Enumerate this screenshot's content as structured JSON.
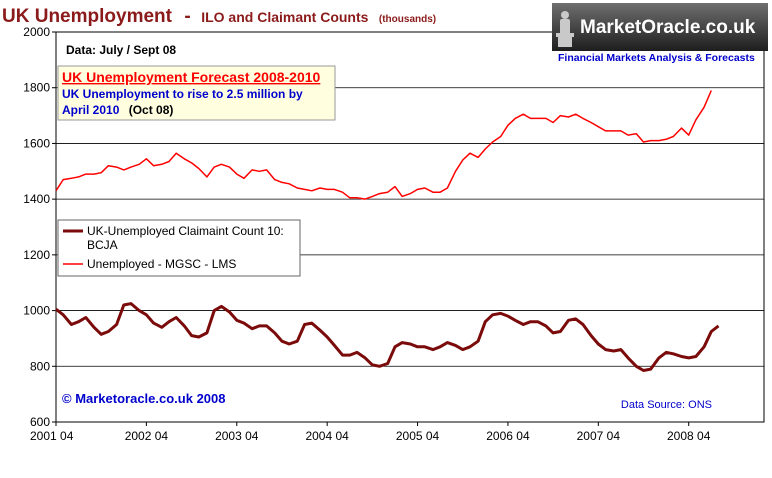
{
  "header": {
    "title_main": "UK Unemployment",
    "title_dash": "-",
    "title_sub": "ILO and Claimant Counts",
    "title_small": "(thousands)"
  },
  "logo": {
    "name": "MarketOracle.co.uk",
    "tagline": "Financial Markets Analysis & Forecasts"
  },
  "annotations": {
    "data_period": "Data: July / Sept 08",
    "forecast_title": "UK Unemployment Forecast 2008-2010",
    "forecast_line1": "UK Unemployment to rise to 2.5 million by",
    "forecast_line2a": "April 2010",
    "forecast_line2b": "(Oct 08)",
    "copyright": "© Marketoracle.co.uk  2008",
    "source": "Data Source: ONS"
  },
  "colors": {
    "claimant": "#7b0a0a",
    "ilo": "#ff0000",
    "title": "#8b1a1a",
    "annotation_blue": "#0000cc",
    "forecast_box_bg": "#ffffe0"
  },
  "chart_data": {
    "type": "line",
    "ylim": [
      600,
      2000
    ],
    "yticks": [
      600,
      800,
      1000,
      1200,
      1400,
      1600,
      1800,
      2000
    ],
    "xlim": [
      2001.25,
      2009.083
    ],
    "xtick_values": [
      2001.25,
      2002.25,
      2003.25,
      2004.25,
      2005.25,
      2006.25,
      2007.25,
      2008.25
    ],
    "xtick_labels": [
      "2001 04",
      "2002 04",
      "2003 04",
      "2004 04",
      "2005 04",
      "2006 04",
      "2007 04",
      "2008 04"
    ],
    "grid": "horizontal",
    "legend_placement": "center-left",
    "series": [
      {
        "name": "UK-Unemployed Claimaint Count 10: BCJA",
        "legend_line1": "UK-Unemployed Claimaint Count 10:",
        "legend_line2": "BCJA",
        "color": "#7b0a0a",
        "points": [
          [
            2001.25,
            1005
          ],
          [
            2001.33,
            985
          ],
          [
            2001.42,
            950
          ],
          [
            2001.5,
            960
          ],
          [
            2001.58,
            975
          ],
          [
            2001.67,
            940
          ],
          [
            2001.75,
            915
          ],
          [
            2001.83,
            925
          ],
          [
            2001.92,
            950
          ],
          [
            2002.0,
            1020
          ],
          [
            2002.08,
            1025
          ],
          [
            2002.17,
            1000
          ],
          [
            2002.25,
            985
          ],
          [
            2002.33,
            955
          ],
          [
            2002.42,
            940
          ],
          [
            2002.5,
            960
          ],
          [
            2002.58,
            975
          ],
          [
            2002.67,
            945
          ],
          [
            2002.75,
            910
          ],
          [
            2002.83,
            905
          ],
          [
            2002.92,
            920
          ],
          [
            2003.0,
            1000
          ],
          [
            2003.08,
            1015
          ],
          [
            2003.17,
            995
          ],
          [
            2003.25,
            965
          ],
          [
            2003.33,
            955
          ],
          [
            2003.42,
            935
          ],
          [
            2003.5,
            945
          ],
          [
            2003.58,
            945
          ],
          [
            2003.67,
            920
          ],
          [
            2003.75,
            890
          ],
          [
            2003.83,
            880
          ],
          [
            2003.92,
            890
          ],
          [
            2004.0,
            950
          ],
          [
            2004.08,
            955
          ],
          [
            2004.17,
            930
          ],
          [
            2004.25,
            905
          ],
          [
            2004.33,
            875
          ],
          [
            2004.42,
            840
          ],
          [
            2004.5,
            840
          ],
          [
            2004.58,
            850
          ],
          [
            2004.67,
            830
          ],
          [
            2004.75,
            805
          ],
          [
            2004.83,
            800
          ],
          [
            2004.92,
            810
          ],
          [
            2005.0,
            870
          ],
          [
            2005.08,
            885
          ],
          [
            2005.17,
            880
          ],
          [
            2005.25,
            870
          ],
          [
            2005.33,
            870
          ],
          [
            2005.42,
            860
          ],
          [
            2005.5,
            870
          ],
          [
            2005.58,
            885
          ],
          [
            2005.67,
            875
          ],
          [
            2005.75,
            860
          ],
          [
            2005.83,
            870
          ],
          [
            2005.92,
            890
          ],
          [
            2006.0,
            960
          ],
          [
            2006.08,
            985
          ],
          [
            2006.17,
            990
          ],
          [
            2006.25,
            980
          ],
          [
            2006.33,
            965
          ],
          [
            2006.42,
            950
          ],
          [
            2006.5,
            960
          ],
          [
            2006.58,
            960
          ],
          [
            2006.67,
            945
          ],
          [
            2006.75,
            920
          ],
          [
            2006.83,
            925
          ],
          [
            2006.92,
            965
          ],
          [
            2007.0,
            970
          ],
          [
            2007.08,
            950
          ],
          [
            2007.17,
            910
          ],
          [
            2007.25,
            880
          ],
          [
            2007.33,
            860
          ],
          [
            2007.42,
            855
          ],
          [
            2007.5,
            860
          ],
          [
            2007.58,
            830
          ],
          [
            2007.67,
            800
          ],
          [
            2007.75,
            785
          ],
          [
            2007.83,
            790
          ],
          [
            2007.92,
            830
          ],
          [
            2008.0,
            850
          ],
          [
            2008.08,
            845
          ],
          [
            2008.17,
            835
          ],
          [
            2008.25,
            830
          ],
          [
            2008.33,
            835
          ],
          [
            2008.42,
            870
          ],
          [
            2008.5,
            925
          ],
          [
            2008.58,
            945
          ]
        ]
      },
      {
        "name": "Unemployed - MGSC - LMS",
        "legend_line1": "Unemployed - MGSC - LMS",
        "color": "#ff0000",
        "points": [
          [
            2001.25,
            1430
          ],
          [
            2001.33,
            1470
          ],
          [
            2001.42,
            1475
          ],
          [
            2001.5,
            1480
          ],
          [
            2001.58,
            1490
          ],
          [
            2001.67,
            1490
          ],
          [
            2001.75,
            1495
          ],
          [
            2001.83,
            1520
          ],
          [
            2001.92,
            1515
          ],
          [
            2002.0,
            1505
          ],
          [
            2002.08,
            1515
          ],
          [
            2002.17,
            1525
          ],
          [
            2002.25,
            1545
          ],
          [
            2002.33,
            1520
          ],
          [
            2002.42,
            1525
          ],
          [
            2002.5,
            1535
          ],
          [
            2002.58,
            1565
          ],
          [
            2002.67,
            1545
          ],
          [
            2002.75,
            1530
          ],
          [
            2002.83,
            1510
          ],
          [
            2002.92,
            1480
          ],
          [
            2003.0,
            1515
          ],
          [
            2003.08,
            1525
          ],
          [
            2003.17,
            1515
          ],
          [
            2003.25,
            1490
          ],
          [
            2003.33,
            1475
          ],
          [
            2003.42,
            1505
          ],
          [
            2003.5,
            1500
          ],
          [
            2003.58,
            1505
          ],
          [
            2003.67,
            1470
          ],
          [
            2003.75,
            1460
          ],
          [
            2003.83,
            1455
          ],
          [
            2003.92,
            1440
          ],
          [
            2004.0,
            1435
          ],
          [
            2004.08,
            1430
          ],
          [
            2004.17,
            1440
          ],
          [
            2004.25,
            1435
          ],
          [
            2004.33,
            1435
          ],
          [
            2004.42,
            1425
          ],
          [
            2004.5,
            1405
          ],
          [
            2004.58,
            1405
          ],
          [
            2004.67,
            1400
          ],
          [
            2004.75,
            1410
          ],
          [
            2004.83,
            1420
          ],
          [
            2004.92,
            1425
          ],
          [
            2005.0,
            1445
          ],
          [
            2005.08,
            1410
          ],
          [
            2005.17,
            1420
          ],
          [
            2005.25,
            1435
          ],
          [
            2005.33,
            1440
          ],
          [
            2005.42,
            1425
          ],
          [
            2005.5,
            1425
          ],
          [
            2005.58,
            1440
          ],
          [
            2005.67,
            1500
          ],
          [
            2005.75,
            1540
          ],
          [
            2005.83,
            1565
          ],
          [
            2005.92,
            1550
          ],
          [
            2006.0,
            1580
          ],
          [
            2006.08,
            1605
          ],
          [
            2006.17,
            1625
          ],
          [
            2006.25,
            1665
          ],
          [
            2006.33,
            1690
          ],
          [
            2006.42,
            1705
          ],
          [
            2006.5,
            1690
          ],
          [
            2006.58,
            1690
          ],
          [
            2006.67,
            1690
          ],
          [
            2006.75,
            1675
          ],
          [
            2006.83,
            1700
          ],
          [
            2006.92,
            1695
          ],
          [
            2007.0,
            1705
          ],
          [
            2007.08,
            1690
          ],
          [
            2007.17,
            1675
          ],
          [
            2007.25,
            1660
          ],
          [
            2007.33,
            1645
          ],
          [
            2007.42,
            1645
          ],
          [
            2007.5,
            1645
          ],
          [
            2007.58,
            1630
          ],
          [
            2007.67,
            1635
          ],
          [
            2007.75,
            1605
          ],
          [
            2007.83,
            1610
          ],
          [
            2007.92,
            1610
          ],
          [
            2008.0,
            1615
          ],
          [
            2008.08,
            1625
          ],
          [
            2008.17,
            1655
          ],
          [
            2008.25,
            1630
          ],
          [
            2008.33,
            1685
          ],
          [
            2008.42,
            1730
          ],
          [
            2008.5,
            1790
          ]
        ]
      }
    ]
  }
}
